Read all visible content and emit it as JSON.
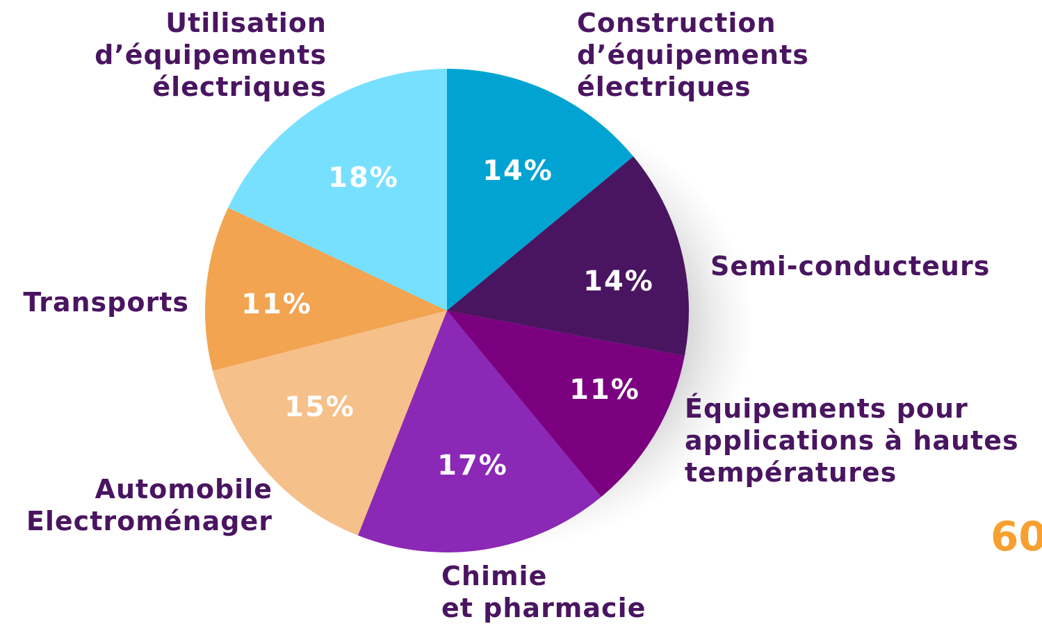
{
  "chart_data": {
    "type": "pie",
    "categories": [
      "Construction\nd’équipements\nélectriques",
      "Semi-conducteurs",
      "Équipements pour\napplications à hautes\ntempératures",
      "Chimie\net pharmacie",
      "Automobile\nElectroménager",
      "Transports",
      "Utilisation\nd’équipements\nélectriques"
    ],
    "values": [
      14,
      14,
      11,
      17,
      15,
      11,
      18
    ],
    "value_labels": [
      "14%",
      "14%",
      "11%",
      "17%",
      "15%",
      "11%",
      "18%"
    ],
    "colors": [
      "#00a3d1",
      "#4a1560",
      "#7b0080",
      "#8b28b5",
      "#f6c08a",
      "#f2a451",
      "#78e0ff"
    ],
    "annotation": "60"
  }
}
